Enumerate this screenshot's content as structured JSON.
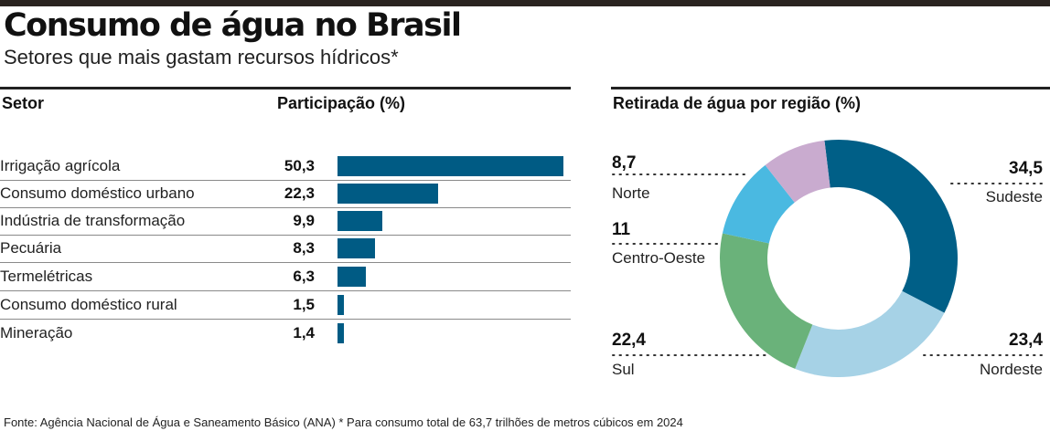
{
  "title": "Consumo de água no Brasil",
  "subtitle": "Setores que mais gastam recursos hídricos*",
  "footnote": "Fonte: Agência Nacional de Água e Saneamento Básico (ANA)  * Para consumo total de 63,7 trilhões de metros cúbicos em 2024",
  "chart_data": [
    {
      "type": "bar",
      "title": "",
      "column_headers": {
        "category": "Setor",
        "value": "Participação (%)"
      },
      "categories": [
        "Irrigação agrícola",
        "Consumo doméstico urbano",
        "Indústria de transformação",
        "Pecuária",
        "Termelétricas",
        "Consumo doméstico rural",
        "Mineração"
      ],
      "values": [
        50.3,
        22.3,
        9.9,
        8.3,
        6.3,
        1.5,
        1.4
      ],
      "value_labels": [
        "50,3",
        "22,3",
        "9,9",
        "8,3",
        "6,3",
        "1,5",
        "1,4"
      ],
      "orientation": "horizontal",
      "color": "#005b84"
    },
    {
      "type": "pie",
      "title": "Retirada de água por região (%)",
      "donut": true,
      "slices": [
        {
          "label": "Sudeste",
          "value": 34.5,
          "value_label": "34,5",
          "color": "#005f87"
        },
        {
          "label": "Nordeste",
          "value": 23.4,
          "value_label": "23,4",
          "color": "#a6d2e6"
        },
        {
          "label": "Sul",
          "value": 22.4,
          "value_label": "22,4",
          "color": "#6ab27a"
        },
        {
          "label": "Centro-Oeste",
          "value": 11,
          "value_label": "11",
          "color": "#4ab9e1"
        },
        {
          "label": "Norte",
          "value": 8.7,
          "value_label": "8,7",
          "color": "#c9abcf"
        }
      ]
    }
  ]
}
